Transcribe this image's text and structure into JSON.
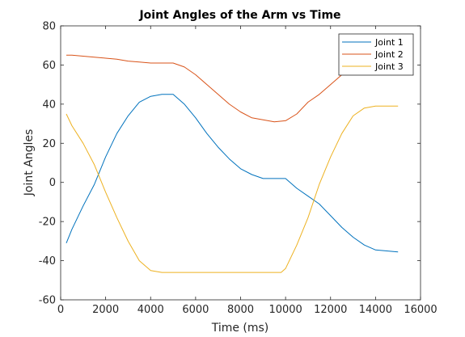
{
  "chart_data": {
    "type": "line",
    "title": "Joint Angles of the Arm vs Time",
    "xlabel": "Time (ms)",
    "ylabel": "Joint Angles",
    "xlim": [
      0,
      16000
    ],
    "ylim": [
      -60,
      80
    ],
    "xticks": [
      0,
      2000,
      4000,
      6000,
      8000,
      10000,
      12000,
      14000,
      16000
    ],
    "yticks": [
      -60,
      -40,
      -20,
      0,
      20,
      40,
      60,
      80
    ],
    "grid": false,
    "legend_position": "top-right",
    "series": [
      {
        "name": "Joint 1",
        "color": "#0072BD",
        "x": [
          250,
          500,
          1000,
          1500,
          2000,
          2500,
          3000,
          3500,
          4000,
          4500,
          5000,
          5500,
          6000,
          6500,
          7000,
          7500,
          8000,
          8500,
          9000,
          9500,
          10000,
          10500,
          11000,
          11500,
          12000,
          12500,
          13000,
          13500,
          14000,
          14500,
          15000
        ],
        "y": [
          -31,
          -24,
          -12,
          -1,
          13,
          25,
          34,
          41,
          44,
          45,
          45,
          40,
          33,
          25,
          18,
          12,
          7,
          4,
          2,
          2,
          2,
          -3,
          -7,
          -11,
          -17,
          -23,
          -28,
          -32,
          -34.5,
          -35,
          -35.5
        ]
      },
      {
        "name": "Joint 2",
        "color": "#D95319",
        "x": [
          250,
          500,
          1000,
          1500,
          2000,
          2500,
          3000,
          3500,
          4000,
          4500,
          5000,
          5500,
          6000,
          6500,
          7000,
          7500,
          8000,
          8500,
          9000,
          9500,
          10000,
          10500,
          11000,
          11500,
          12000,
          12500
        ],
        "y": [
          65,
          65,
          64.5,
          64,
          63.5,
          63,
          62,
          61.5,
          61,
          61,
          61,
          59,
          55,
          50,
          45,
          40,
          36,
          33,
          32,
          31,
          31.5,
          35,
          41,
          45,
          50,
          55
        ]
      },
      {
        "name": "Joint 3",
        "color": "#EDB120",
        "x": [
          250,
          500,
          1000,
          1500,
          2000,
          2500,
          3000,
          3500,
          4000,
          4500,
          5000,
          6000,
          7000,
          8000,
          9000,
          9800,
          10000,
          10500,
          11000,
          11500,
          12000,
          12500,
          13000,
          13500,
          14000,
          14500,
          15000
        ],
        "y": [
          35,
          29,
          20,
          9,
          -5,
          -18,
          -30,
          -40,
          -45,
          -46,
          -46,
          -46,
          -46,
          -46,
          -46,
          -46,
          -44,
          -32,
          -18,
          -1,
          13,
          25,
          34,
          38,
          39,
          39,
          39
        ]
      }
    ]
  }
}
